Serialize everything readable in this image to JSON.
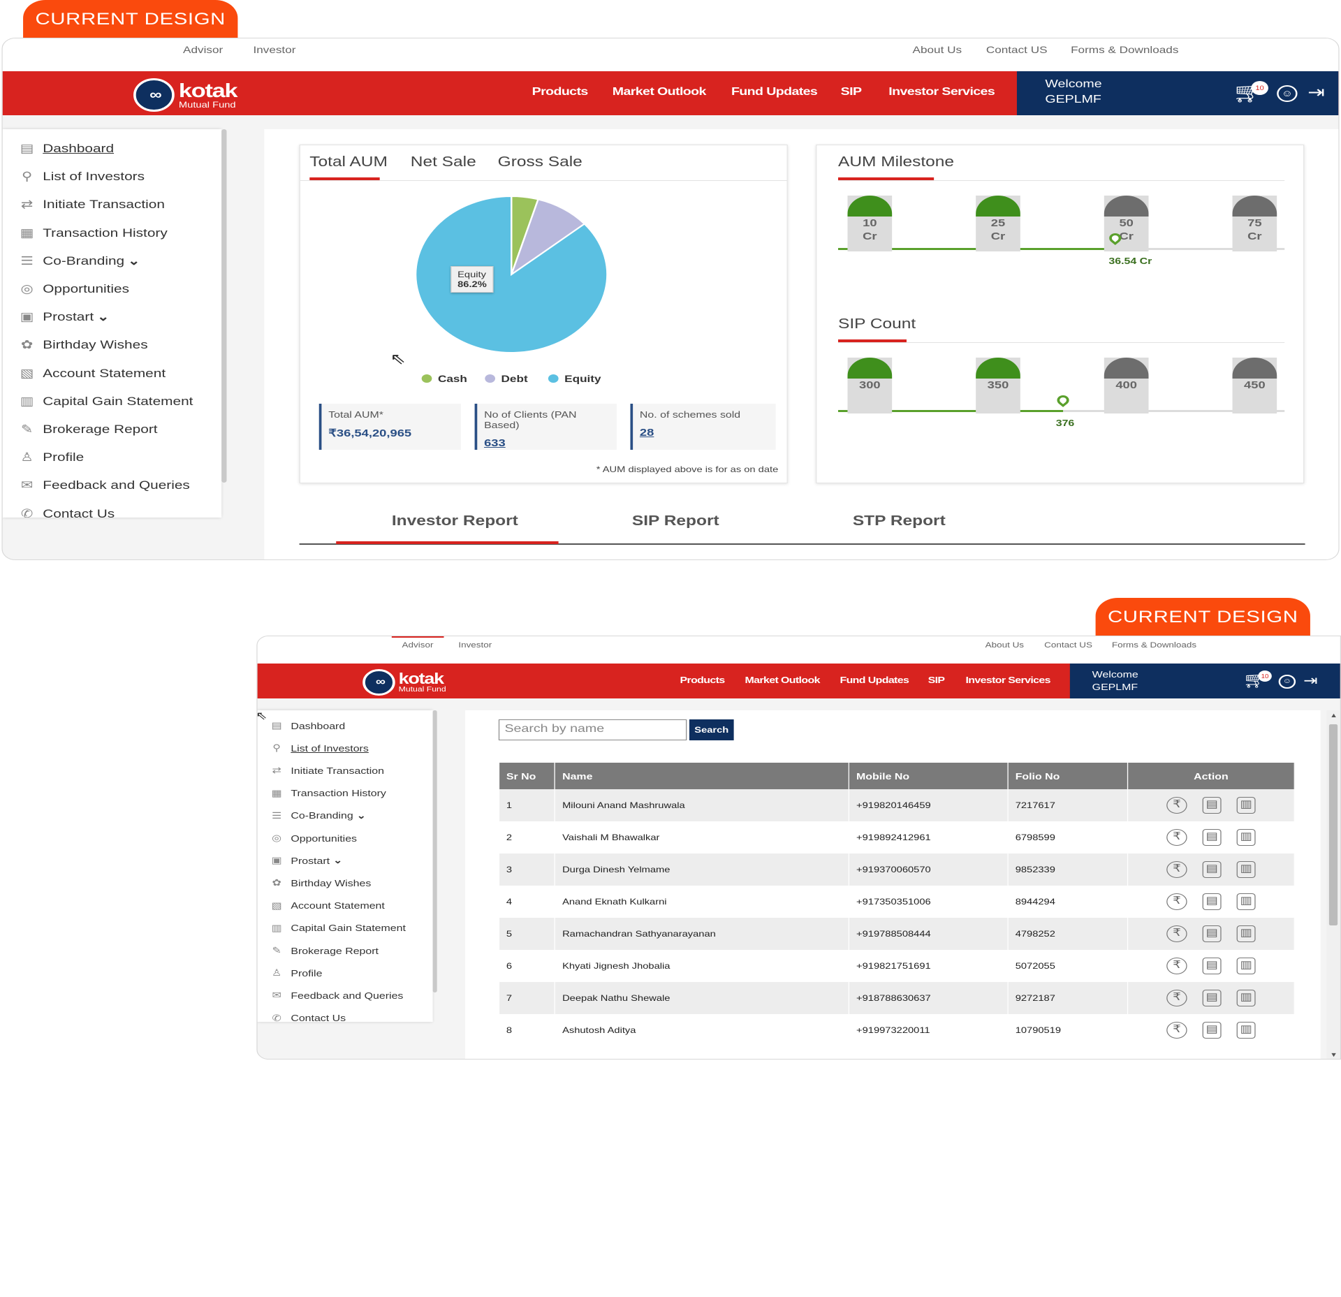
{
  "labels": {
    "tag1": "CURRENT DESIGN",
    "tag2": "CURRENT DESIGN"
  },
  "util": {
    "advisor": "Advisor",
    "investor": "Investor",
    "about": "About Us",
    "contact": "Contact US",
    "forms": "Forms & Downloads"
  },
  "logo": {
    "name": "kotak",
    "sub": "Mutual Fund"
  },
  "nav": {
    "products": "Products",
    "market": "Market Outlook",
    "fund": "Fund Updates",
    "sip": "SIP",
    "investor_services": "Investor Services",
    "welcome": "Welcome",
    "user": "GEPLMF",
    "cart_count": "10"
  },
  "sidebar": [
    "Dashboard",
    "List of Investors",
    "Initiate Transaction",
    "Transaction History",
    "Co-Branding",
    "Opportunities",
    "Prostart",
    "Birthday Wishes",
    "Account Statement",
    "Capital Gain Statement",
    "Brokerage Report",
    "Profile",
    "Feedback and Queries",
    "Contact Us"
  ],
  "aum_tabs": [
    "Total AUM",
    "Net Sale",
    "Gross Sale"
  ],
  "chart_data": {
    "type": "pie",
    "slices": [
      {
        "label": "Cash",
        "value": 4.5,
        "color": "#9bc25b"
      },
      {
        "label": "Debt",
        "value": 9.3,
        "color": "#b8b8dc"
      },
      {
        "label": "Equity",
        "value": 86.2,
        "color": "#5bc0e2"
      }
    ],
    "tooltip_label": "Equity",
    "tooltip_value": "86.2%"
  },
  "stats": {
    "total_aum_label": "Total AUM*",
    "total_aum_value": "₹36,54,20,965",
    "clients_label": "No of Clients (PAN Based)",
    "clients_value": "633",
    "schemes_label": "No. of schemes sold",
    "schemes_value": "28",
    "note": "* AUM displayed above is for as on date"
  },
  "milestone": {
    "title": "AUM Milestone",
    "steps": [
      {
        "n": "10",
        "u": "Cr",
        "reached": true
      },
      {
        "n": "25",
        "u": "Cr",
        "reached": true
      },
      {
        "n": "50",
        "u": "Cr",
        "reached": false
      },
      {
        "n": "75",
        "u": "Cr",
        "reached": false
      }
    ],
    "current": "36.54 Cr"
  },
  "sipcount": {
    "title": "SIP Count",
    "steps": [
      {
        "n": "300",
        "reached": true
      },
      {
        "n": "350",
        "reached": true
      },
      {
        "n": "400",
        "reached": false
      },
      {
        "n": "450",
        "reached": false
      }
    ],
    "current": "376"
  },
  "report_tabs": [
    "Investor Report",
    "SIP Report",
    "STP Report"
  ],
  "search": {
    "placeholder": "Search by name",
    "button": "Search"
  },
  "table": {
    "headers": [
      "Sr No",
      "Name",
      "Mobile No",
      "Folio No",
      "Action"
    ],
    "rows": [
      [
        "1",
        "Milouni Anand Mashruwala",
        "+919820146459",
        "7217617"
      ],
      [
        "2",
        "Vaishali M Bhawalkar",
        "+919892412961",
        "6798599"
      ],
      [
        "3",
        "Durga Dinesh Yelmame",
        "+919370060570",
        "9852339"
      ],
      [
        "4",
        "Anand Eknath Kulkarni",
        "+917350351006",
        "8944294"
      ],
      [
        "5",
        "Ramachandran Sathyanarayanan",
        "+919788508444",
        "4798252"
      ],
      [
        "6",
        "Khyati Jignesh Jhobalia",
        "+919821751691",
        "5072055"
      ],
      [
        "7",
        "Deepak Nathu Shewale",
        "+918788630637",
        "9272187"
      ],
      [
        "8",
        "Ashutosh Aditya",
        "+919973220011",
        "10790519"
      ]
    ]
  }
}
